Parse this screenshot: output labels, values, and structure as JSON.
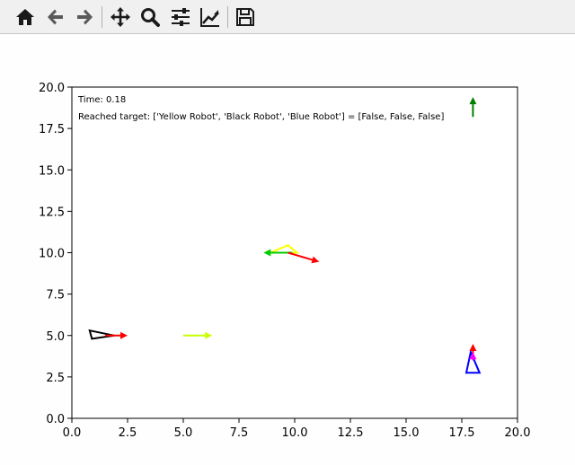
{
  "toolbar": {
    "buttons": [
      {
        "name": "home-button",
        "icon": "home-icon"
      },
      {
        "name": "back-button",
        "icon": "arrow-left-icon"
      },
      {
        "name": "forward-button",
        "icon": "arrow-right-icon"
      },
      {
        "name": "pan-button",
        "icon": "move-icon"
      },
      {
        "name": "zoom-button",
        "icon": "magnifier-icon"
      },
      {
        "name": "configure-subplots-button",
        "icon": "sliders-icon"
      },
      {
        "name": "edit-axes-button",
        "icon": "chart-line-icon"
      },
      {
        "name": "save-button",
        "icon": "floppy-disk-icon"
      }
    ]
  },
  "chart_data": {
    "type": "scatter",
    "xlim": [
      0,
      20
    ],
    "ylim": [
      0,
      20
    ],
    "xticks": [
      "0.0",
      "2.5",
      "5.0",
      "7.5",
      "10.0",
      "12.5",
      "15.0",
      "17.5",
      "20.0"
    ],
    "yticks": [
      "0.0",
      "2.5",
      "5.0",
      "7.5",
      "10.0",
      "12.5",
      "15.0",
      "17.5",
      "20.0"
    ],
    "grid": false,
    "annotations": {
      "time": "Time: 0.18",
      "reached": "Reached target: ['Yellow Robot', 'Black Robot', 'Blue Robot'] = [False, False, False]"
    },
    "robots": [
      {
        "color": "#000000",
        "triangle": [
          [
            0.8,
            5.3
          ],
          [
            0.9,
            4.8
          ],
          [
            1.9,
            5.0
          ]
        ]
      },
      {
        "color": "#ffff00",
        "triangle": [
          [
            8.9,
            10.0
          ],
          [
            9.7,
            10.45
          ],
          [
            10.1,
            10.0
          ]
        ]
      },
      {
        "color": "#0000ff",
        "triangle": [
          [
            17.9,
            4.0
          ],
          [
            17.7,
            2.75
          ],
          [
            18.3,
            2.75
          ]
        ]
      }
    ],
    "arrows": [
      {
        "color": "#ff0000",
        "from": [
          1.5,
          5.0
        ],
        "to": [
          2.5,
          5.0
        ]
      },
      {
        "color": "#c8ff00",
        "from": [
          5.0,
          5.0
        ],
        "to": [
          6.3,
          5.0
        ]
      },
      {
        "color": "#00cc00",
        "from": [
          9.9,
          10.0
        ],
        "to": [
          8.6,
          10.0
        ]
      },
      {
        "color": "#ff0000",
        "from": [
          9.7,
          10.0
        ],
        "to": [
          11.1,
          9.45
        ]
      },
      {
        "color": "#ff0000",
        "from": [
          18.0,
          3.7
        ],
        "to": [
          18.0,
          4.5
        ]
      },
      {
        "color": "#ff00ff",
        "from": [
          18.0,
          3.5
        ],
        "to": [
          18.0,
          4.0
        ]
      },
      {
        "color": "#008000",
        "from": [
          18.0,
          18.2
        ],
        "to": [
          18.0,
          19.4
        ]
      }
    ]
  }
}
